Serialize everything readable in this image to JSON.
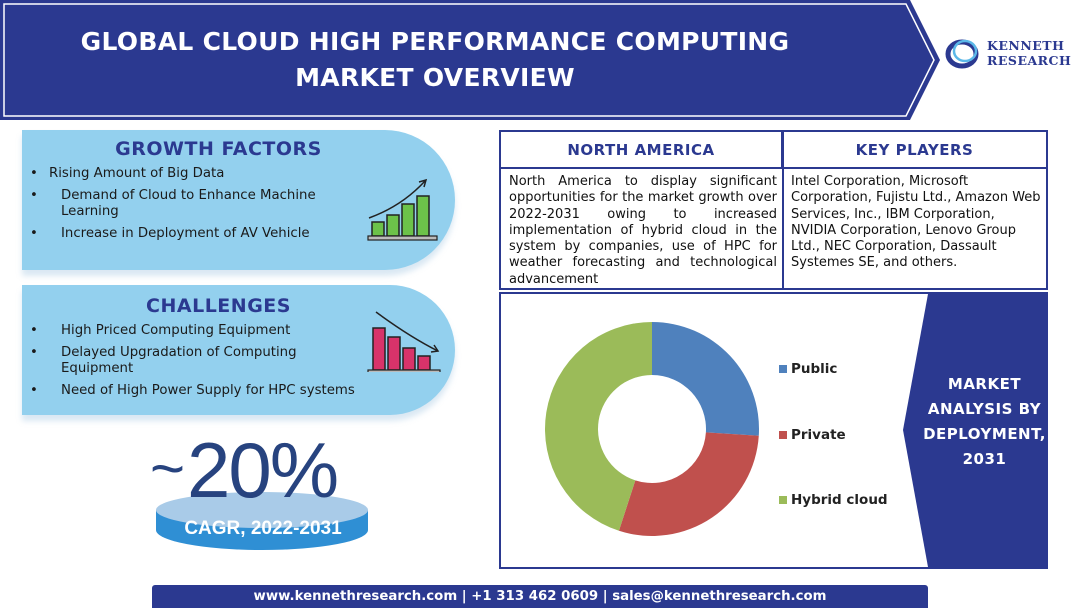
{
  "header": {
    "title_line1": "GLOBAL CLOUD HIGH PERFORMANCE COMPUTING",
    "title_line2": "MARKET OVERVIEW",
    "color": "#2b3990"
  },
  "logo": {
    "line1": "KENNETH",
    "line2": "RESEARCH"
  },
  "growth_factors": {
    "title": "GROWTH FACTORS",
    "items": [
      "Rising Amount of Big Data",
      "Demand of Cloud to Enhance Machine Learning",
      "Increase in Deployment of AV Vehicle"
    ],
    "icon": "rising-bar-chart-icon"
  },
  "challenges": {
    "title": "CHALLENGES",
    "items": [
      "High Priced Computing Equipment",
      "Delayed Upgradation of Computing Equipment",
      "Need of High Power Supply for HPC systems"
    ],
    "icon": "falling-bar-chart-icon"
  },
  "cagr": {
    "prefix": "~",
    "value": "20%",
    "label": "CAGR, 2022-2031"
  },
  "north_america": {
    "title": "NORTH AMERICA",
    "text": "North America to display significant opportunities for the market growth over 2022-2031 owing to increased implementation of hybrid cloud in the system by companies, use of HPC for weather forecasting and technological advancement"
  },
  "key_players": {
    "title": "KEY PLAYERS",
    "text": "Intel Corporation, Microsoft Corporation, Fujistu Ltd., Amazon Web Services, Inc., IBM Corporation, NVIDIA Corporation, Lenovo Group Ltd., NEC Corporation, Dassault Systemes SE, and others."
  },
  "market_panel": {
    "text": "MARKET ANALYSIS BY DEPLOYMENT, 2031"
  },
  "chart_data": {
    "type": "pie",
    "donut": true,
    "categories": [
      "Public",
      "Private",
      "Hybrid cloud"
    ],
    "values": [
      26,
      29,
      45
    ],
    "colors": [
      "#4f81bd",
      "#c0504d",
      "#9bbb59"
    ],
    "legend": "right"
  },
  "footer": {
    "text": "www.kennethresearch.com | +1 313 462 0609 | sales@kennethresearch.com"
  }
}
